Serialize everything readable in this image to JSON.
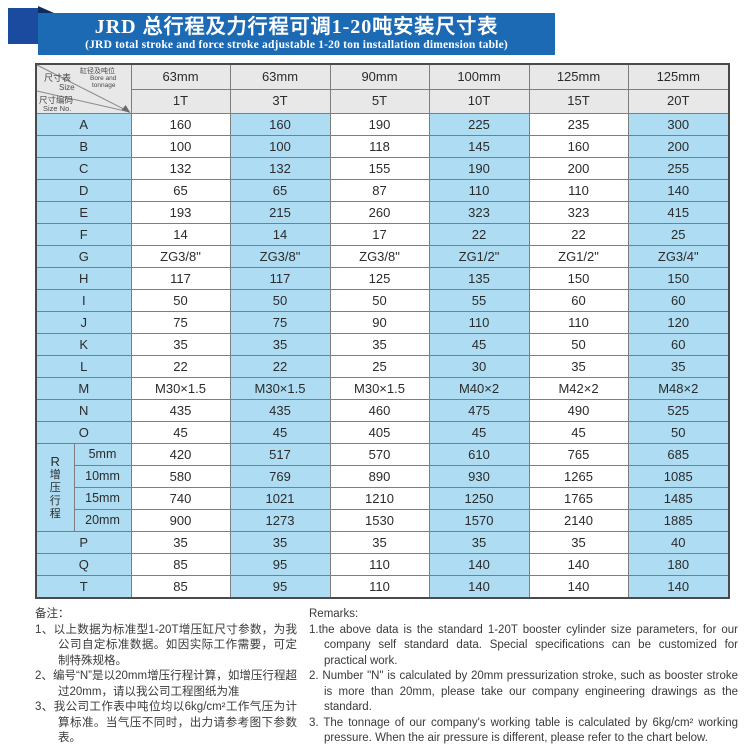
{
  "header": {
    "title_cn": "JRD 总行程及力行程可调1-20吨安装尺寸表",
    "title_en": "(JRD total stroke and force stroke adjustable 1-20 ton installation dimension table)"
  },
  "table": {
    "corner": {
      "size_cn": "尺寸表",
      "size_en": "Size",
      "bore_cn": "缸径及吨位",
      "bore_en1": "Bore and",
      "bore_en2": "tonnage",
      "code_cn": "尺寸编码",
      "code_en": "Size No."
    },
    "bores": [
      "63mm",
      "63mm",
      "90mm",
      "100mm",
      "125mm",
      "125mm"
    ],
    "tonnages": [
      "1T",
      "3T",
      "5T",
      "10T",
      "15T",
      "20T"
    ],
    "rows": [
      {
        "label": "A",
        "values": [
          "160",
          "160",
          "190",
          "225",
          "235",
          "300"
        ]
      },
      {
        "label": "B",
        "values": [
          "100",
          "100",
          "118",
          "145",
          "160",
          "200"
        ]
      },
      {
        "label": "C",
        "values": [
          "132",
          "132",
          "155",
          "190",
          "200",
          "255"
        ]
      },
      {
        "label": "D",
        "values": [
          "65",
          "65",
          "87",
          "110",
          "110",
          "140"
        ]
      },
      {
        "label": "E",
        "values": [
          "193",
          "215",
          "260",
          "323",
          "323",
          "415"
        ]
      },
      {
        "label": "F",
        "values": [
          "14",
          "14",
          "17",
          "22",
          "22",
          "25"
        ]
      },
      {
        "label": "G",
        "values": [
          "ZG3/8\"",
          "ZG3/8\"",
          "ZG3/8\"",
          "ZG1/2\"",
          "ZG1/2\"",
          "ZG3/4\""
        ]
      },
      {
        "label": "H",
        "values": [
          "117",
          "117",
          "125",
          "135",
          "150",
          "150"
        ]
      },
      {
        "label": "I",
        "values": [
          "50",
          "50",
          "50",
          "55",
          "60",
          "60"
        ]
      },
      {
        "label": "J",
        "values": [
          "75",
          "75",
          "90",
          "110",
          "110",
          "120"
        ]
      },
      {
        "label": "K",
        "values": [
          "35",
          "35",
          "35",
          "45",
          "50",
          "60"
        ]
      },
      {
        "label": "L",
        "values": [
          "22",
          "22",
          "25",
          "30",
          "35",
          "35"
        ]
      },
      {
        "label": "M",
        "values": [
          "M30×1.5",
          "M30×1.5",
          "M30×1.5",
          "M40×2",
          "M42×2",
          "M48×2"
        ]
      },
      {
        "label": "N",
        "values": [
          "435",
          "435",
          "460",
          "475",
          "490",
          "525"
        ]
      },
      {
        "label": "O",
        "values": [
          "45",
          "45",
          "405",
          "45",
          "45",
          "50"
        ]
      }
    ],
    "r_group": {
      "letter": "R",
      "vertical_label": "增压行程",
      "subrows": [
        {
          "label": "5mm",
          "values": [
            "420",
            "517",
            "570",
            "610",
            "765",
            "685"
          ]
        },
        {
          "label": "10mm",
          "values": [
            "580",
            "769",
            "890",
            "930",
            "1265",
            "1085"
          ]
        },
        {
          "label": "15mm",
          "values": [
            "740",
            "1021",
            "1210",
            "1250",
            "1765",
            "1485"
          ]
        },
        {
          "label": "20mm",
          "values": [
            "900",
            "1273",
            "1530",
            "1570",
            "2140",
            "1885"
          ]
        }
      ]
    },
    "bottom_rows": [
      {
        "label": "P",
        "values": [
          "35",
          "35",
          "35",
          "35",
          "35",
          "40"
        ]
      },
      {
        "label": "Q",
        "values": [
          "85",
          "95",
          "110",
          "140",
          "140",
          "180"
        ]
      },
      {
        "label": "T",
        "values": [
          "85",
          "95",
          "110",
          "140",
          "140",
          "140"
        ]
      }
    ]
  },
  "remarks_cn": {
    "heading": "备注：",
    "items": [
      "1、以上数据为标准型1-20T增压缸尺寸参数，为我公司自定标准数据。如因实际工作需要，可定制特殊规格。",
      "2、编号“N”是以20mm增压行程计算，如增压行程超过20mm，请以我公司工程图纸为准",
      "3、我公司工作表中吨位均以6kg/cm²工作气压为计算标准。当气压不同时，出力请参考图下参数表。"
    ]
  },
  "remarks_en": {
    "heading": "Remarks:",
    "items": [
      "1.the above data is the standard 1-20T booster cylinder size parameters, for our company self standard data. Special specifications can be customized for practical work.",
      "2. Number \"N\" is calculated by 20mm pressurization stroke, such as booster stroke is more than 20mm, please take our company engineering drawings as the standard.",
      "3. The tonnage of our company's working table is calculated by 6kg/cm² working pressure. When the air pressure is different, please refer to the chart below."
    ]
  },
  "colors": {
    "banner_blue": "#1c6ab3",
    "square_navy": "#1a4b9e",
    "cell_blue": "#aedcf2",
    "header_gray": "#e8e8e8"
  }
}
